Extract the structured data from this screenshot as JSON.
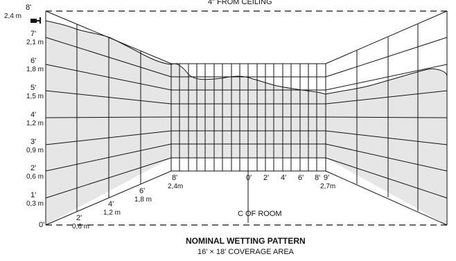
{
  "ceiling_note": "4\" FROM CEILING",
  "left_wall": {
    "height_labels_ft": [
      "8'",
      "7'",
      "6'",
      "5'",
      "4'",
      "3'",
      "2'",
      "1'",
      "0'"
    ],
    "height_labels_m": [
      "2,4 m",
      "2,1 m",
      "1,8 m",
      "1,5 m",
      "1,2 m",
      "0,9 m",
      "0,6 m",
      "0,3 m",
      ""
    ],
    "floor_labels_ft": [
      "2'",
      "4'",
      "6'",
      "8'"
    ],
    "floor_labels_m": [
      "0,6 m",
      "1,2 m",
      "1,8 m",
      "2,4m"
    ]
  },
  "back_wall": {
    "labels": [
      "0'",
      "2'",
      "4'",
      "6'",
      "8'",
      "9'"
    ],
    "right_m": "2,7m"
  },
  "center_label": "C OF ROOM",
  "title": "NOMINAL WETTING PATTERN",
  "subtitle": "16' × 18' COVERAGE AREA",
  "sprinkler_icon": "sprinkler-head-icon"
}
